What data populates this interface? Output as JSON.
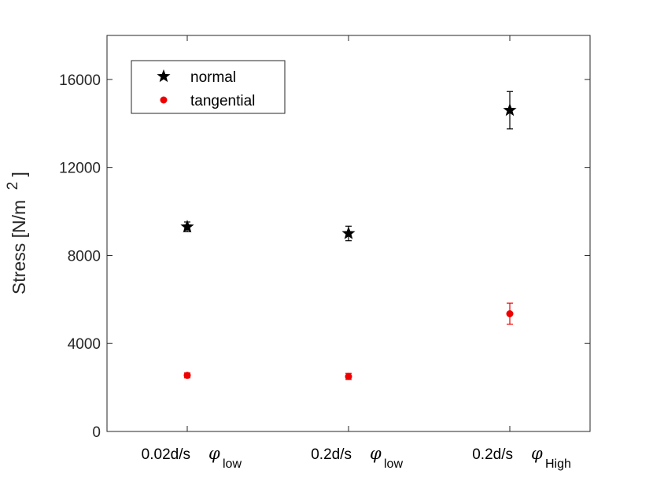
{
  "chart_data": {
    "type": "scatter",
    "title": "",
    "xlabel": "",
    "ylabel": "Stress [N/m",
    "ylabel_superscript": "2",
    "ylabel_suffix": "]",
    "ylim": [
      0,
      18000
    ],
    "yticks": [
      0,
      4000,
      8000,
      12000,
      16000
    ],
    "grid": false,
    "legend_position": "top-left",
    "categories": [
      {
        "rate": "0.02d/s",
        "phi": "φ",
        "sub": "low"
      },
      {
        "rate": "0.2d/s",
        "phi": "φ",
        "sub": "low"
      },
      {
        "rate": "0.2d/s",
        "phi": "φ",
        "sub": "High"
      }
    ],
    "series": [
      {
        "name": "normal",
        "marker": "star",
        "color": "#000000",
        "values": [
          9300,
          9000,
          14600
        ],
        "errors": [
          220,
          330,
          850
        ]
      },
      {
        "name": "tangential",
        "marker": "circle",
        "color": "#ee0000",
        "values": [
          2550,
          2500,
          5350
        ],
        "errors": [
          110,
          140,
          480
        ]
      }
    ]
  }
}
